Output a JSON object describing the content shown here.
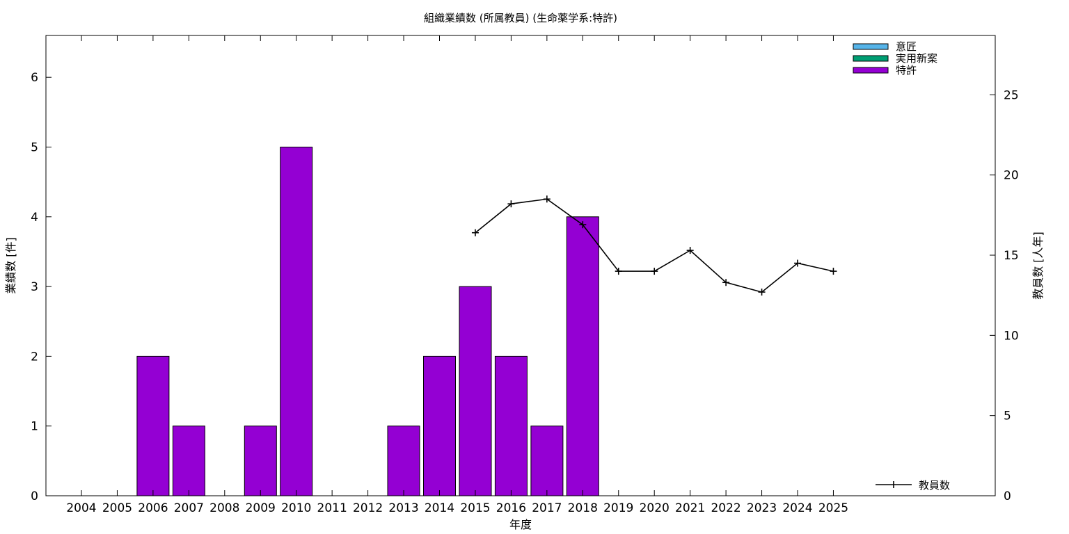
{
  "chart_data": {
    "type": "bar",
    "title": "組織業績数 (所属教員) (生命薬学系:特許)",
    "xlabel": "年度",
    "ylabel": "業績数 [件]",
    "y2label": "教員数 [人年]",
    "categories": [
      "2004",
      "2005",
      "2006",
      "2007",
      "2008",
      "2009",
      "2010",
      "2011",
      "2012",
      "2013",
      "2014",
      "2015",
      "2016",
      "2017",
      "2018",
      "2019",
      "2020",
      "2021",
      "2022",
      "2023",
      "2024",
      "2025"
    ],
    "ylim": [
      0,
      6.6
    ],
    "y2lim": [
      0,
      28.7
    ],
    "yticks": [
      "0",
      "1",
      "2",
      "3",
      "4",
      "5",
      "6"
    ],
    "y2ticks": [
      "0",
      "5",
      "10",
      "15",
      "20",
      "25"
    ],
    "series": [
      {
        "name": "意匠",
        "kind": "bar",
        "color": "#56b4e9",
        "values": [
          0,
          0,
          0,
          0,
          0,
          0,
          0,
          0,
          0,
          0,
          0,
          0,
          0,
          0,
          0,
          0,
          0,
          0,
          0,
          0,
          0,
          0
        ]
      },
      {
        "name": "実用新案",
        "kind": "bar",
        "color": "#009e73",
        "values": [
          0,
          0,
          0,
          0,
          0,
          0,
          0,
          0,
          0,
          0,
          0,
          0,
          0,
          0,
          0,
          0,
          0,
          0,
          0,
          0,
          0,
          0
        ]
      },
      {
        "name": "特許",
        "kind": "bar",
        "color": "#9400d3",
        "values": [
          0,
          0,
          2,
          1,
          0,
          1,
          5,
          0,
          0,
          1,
          2,
          3,
          2,
          1,
          4,
          0,
          0,
          0,
          0,
          0,
          0,
          0
        ]
      },
      {
        "name": "教員数",
        "kind": "line",
        "axis": "right",
        "color": "#000000",
        "values": [
          null,
          null,
          null,
          null,
          null,
          null,
          null,
          null,
          null,
          null,
          null,
          16.4,
          18.2,
          18.5,
          16.9,
          14.0,
          14.0,
          15.3,
          13.3,
          12.7,
          14.5,
          14.0
        ]
      }
    ],
    "legend_bars": "top-right",
    "legend_line": "bottom-right",
    "grid": false
  }
}
